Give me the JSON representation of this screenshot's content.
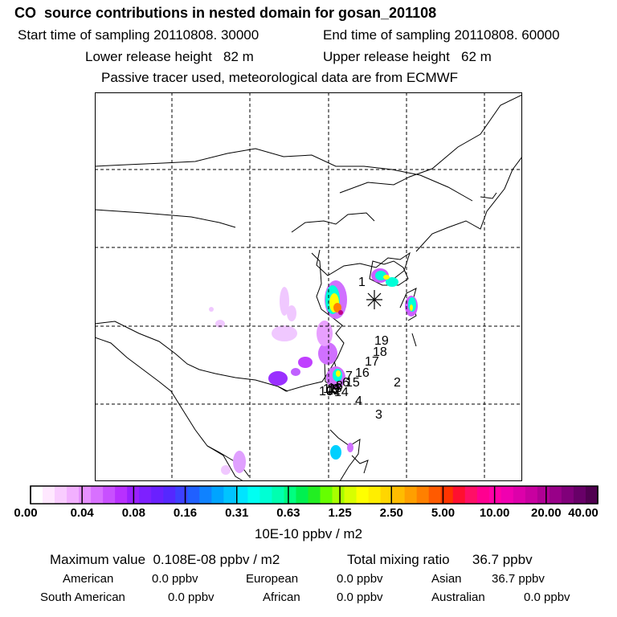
{
  "header": {
    "title": "CO  source contributions in nested domain for gosan_201108",
    "start_time": "Start time of sampling 20110808. 30000",
    "end_time": "End time of sampling 20110808. 60000",
    "lower_release": "Lower release height   82 m",
    "upper_release": "Upper release height   62 m",
    "tracer_note": "Passive tracer used, meteorological data are from ECMWF"
  },
  "map": {
    "trajectory_labels": [
      "1",
      "2",
      "3",
      "4",
      "5",
      "6",
      "7",
      "8",
      "9",
      "10",
      "11",
      "12",
      "13",
      "14",
      "15",
      "16",
      "17",
      "18",
      "19"
    ],
    "receptor_marker": "star"
  },
  "colorbar": {
    "ticks": [
      "0.00",
      "0.04",
      "0.08",
      "0.16",
      "0.31",
      "0.63",
      "1.25",
      "2.50",
      "5.00",
      "10.00",
      "20.00",
      "40.00"
    ],
    "colors": [
      "#ffffff",
      "#ffe8ff",
      "#f9ccff",
      "#f2b0ff",
      "#e690ff",
      "#d870ff",
      "#c850ff",
      "#b830ff",
      "#9a20ff",
      "#7e20ff",
      "#6a20ff",
      "#5528ff",
      "#3d40ff",
      "#2060ff",
      "#0f82ff",
      "#00a4ff",
      "#00c4ff",
      "#00e4ff",
      "#00fff2",
      "#00ffd4",
      "#00ffb0",
      "#00ff80",
      "#00f050",
      "#22ee22",
      "#66ff00",
      "#a8ff00",
      "#d8ff00",
      "#ffff00",
      "#ffee00",
      "#ffd600",
      "#ffbc00",
      "#ff9f00",
      "#ff8000",
      "#ff5a00",
      "#ff3400",
      "#ff1030",
      "#ff0f66",
      "#ff0090",
      "#ff00a8",
      "#f000b0",
      "#dd00aa",
      "#c800a0",
      "#b00094",
      "#980088",
      "#80007a",
      "#680068",
      "#500050"
    ],
    "units": "10E-10 ppbv / m2"
  },
  "footer": {
    "max_value": "Maximum value  0.108E-08 ppbv / m2",
    "total_mixing": "Total mixing ratio      36.7 ppbv",
    "american_label": "American",
    "american_value": "0.0 ppbv",
    "european_label": "European",
    "european_value": "0.0 ppbv",
    "asian_label": "Asian",
    "asian_value": "36.7 ppbv",
    "south_american_label": "South American",
    "south_american_value": "0.0 ppbv",
    "african_label": "African",
    "african_value": "0.0 ppbv",
    "australian_label": "Australian",
    "australian_value": "0.0 ppbv"
  }
}
